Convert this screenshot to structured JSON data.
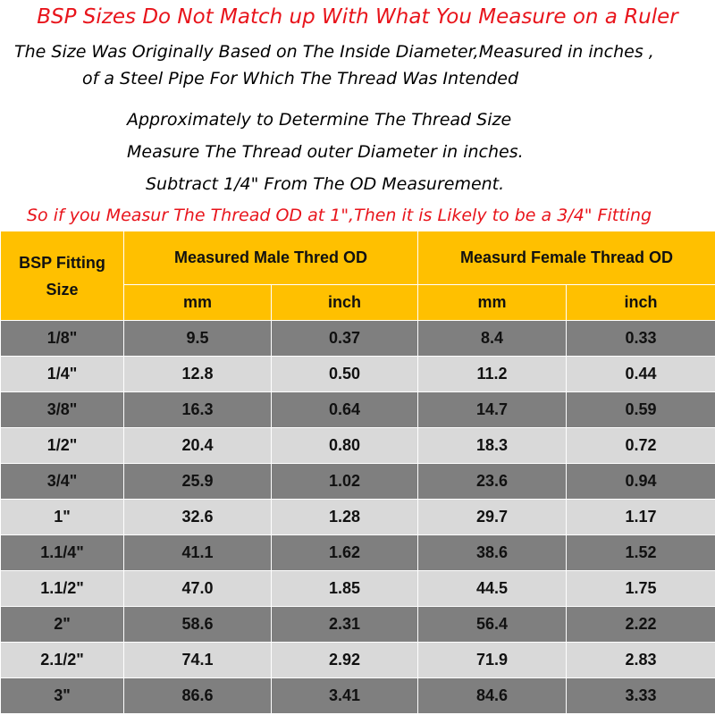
{
  "header": {
    "title": "BSP Sizes Do Not Match up With What You Measure on a Ruler",
    "lines": [
      "The Size Was Originally Based on The Inside Diameter,Measured in inches ,",
      "of a Steel Pipe For Which The Thread Was Intended",
      "Approximately to Determine The Thread Size",
      "Measure The Thread outer Diameter in inches.",
      "Subtract 1/4\" From The OD Measurement."
    ],
    "note": "So if you Measur The Thread OD at 1\",Then it is Likely to be a 3/4\" Fitting"
  },
  "table": {
    "size_header": "BSP Fitting Size",
    "groups": [
      "Measured Male Thred OD",
      "Measurd Female Thread OD"
    ],
    "units": [
      "mm",
      "inch",
      "mm",
      "inch"
    ],
    "rows": [
      [
        "1/8\"",
        "9.5",
        "0.37",
        "8.4",
        "0.33"
      ],
      [
        "1/4\"",
        "12.8",
        "0.50",
        "11.2",
        "0.44"
      ],
      [
        "3/8\"",
        "16.3",
        "0.64",
        "14.7",
        "0.59"
      ],
      [
        "1/2\"",
        "20.4",
        "0.80",
        "18.3",
        "0.72"
      ],
      [
        "3/4\"",
        "25.9",
        "1.02",
        "23.6",
        "0.94"
      ],
      [
        "1\"",
        "32.6",
        "1.28",
        "29.7",
        "1.17"
      ],
      [
        "1.1/4\"",
        "41.1",
        "1.62",
        "38.6",
        "1.52"
      ],
      [
        "1.1/2\"",
        "47.0",
        "1.85",
        "44.5",
        "1.75"
      ],
      [
        "2\"",
        "58.6",
        "2.31",
        "56.4",
        "2.22"
      ],
      [
        "2.1/2\"",
        "74.1",
        "2.92",
        "71.9",
        "2.83"
      ],
      [
        "3\"",
        "86.6",
        "3.41",
        "84.6",
        "3.33"
      ]
    ]
  }
}
